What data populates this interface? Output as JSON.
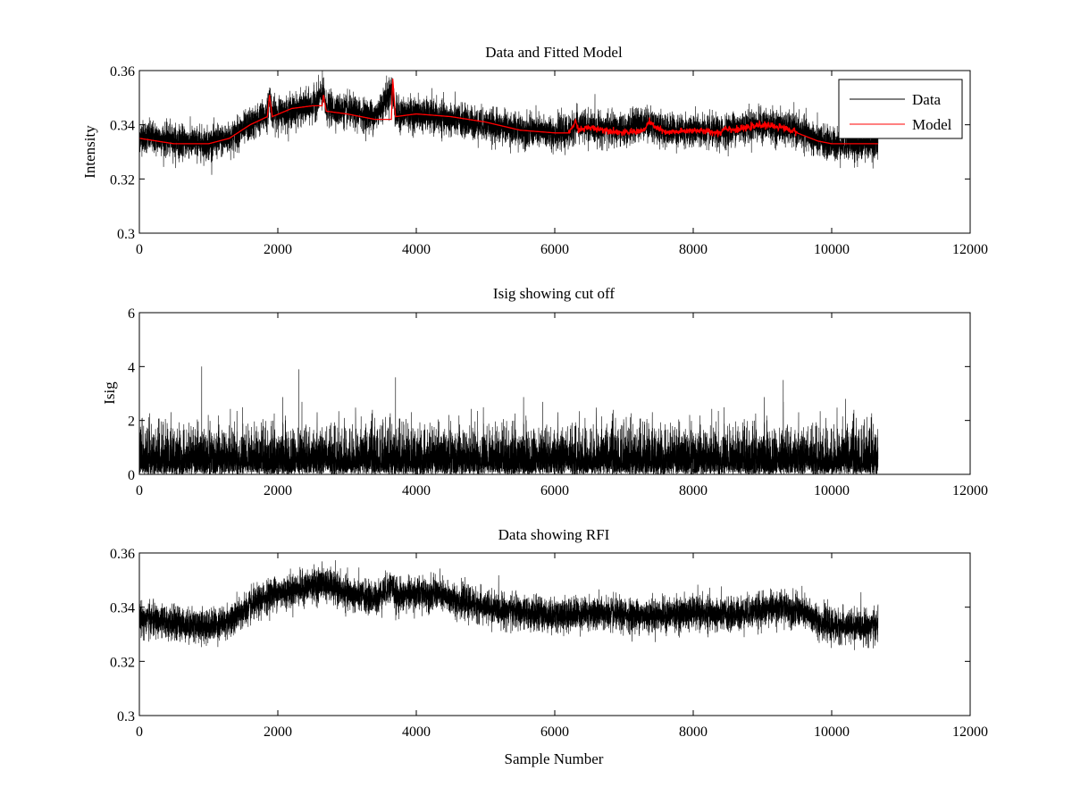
{
  "chart_data": [
    {
      "type": "line",
      "title": "Data and Fitted Model",
      "xlabel": "",
      "ylabel": "Intensity",
      "xlim": [
        0,
        12000
      ],
      "ylim": [
        0.3,
        0.36
      ],
      "xticks": [
        0,
        2000,
        4000,
        6000,
        8000,
        10000,
        12000
      ],
      "yticks": [
        0.3,
        0.32,
        0.34,
        0.36
      ],
      "xtick_labels": [
        "0",
        "2000",
        "4000",
        "6000",
        "8000",
        "10000",
        "12000"
      ],
      "ytick_labels": [
        "0.3",
        "0.32",
        "0.34",
        "0.36"
      ],
      "legend": {
        "placement": "top-right",
        "entries": [
          "Data",
          "Model"
        ]
      },
      "grid": false,
      "n_samples": 10670,
      "series": [
        {
          "name": "Data",
          "color": "#000000",
          "x": [
            0,
            500,
            1000,
            1300,
            1600,
            1850,
            1880,
            1920,
            2200,
            2500,
            2650,
            2700,
            3000,
            3400,
            3650,
            3700,
            4000,
            4500,
            5000,
            5500,
            6000,
            6200,
            6300,
            6500,
            7000,
            7300,
            7600,
            8000,
            8400,
            8600,
            9000,
            9300,
            9600,
            9800,
            10000,
            10300,
            10670
          ],
          "center": [
            0.336,
            0.334,
            0.333,
            0.335,
            0.34,
            0.344,
            0.351,
            0.344,
            0.345,
            0.347,
            0.352,
            0.346,
            0.345,
            0.343,
            0.353,
            0.344,
            0.344,
            0.342,
            0.34,
            0.338,
            0.337,
            0.337,
            0.34,
            0.339,
            0.338,
            0.341,
            0.338,
            0.338,
            0.337,
            0.339,
            0.34,
            0.339,
            0.337,
            0.334,
            0.333,
            0.333,
            0.333
          ],
          "noise_amplitude": 0.0065
        },
        {
          "name": "Model",
          "color": "#ff0000",
          "x": [
            0,
            500,
            1000,
            1300,
            1600,
            1850,
            1880,
            1920,
            2200,
            2500,
            2640,
            2660,
            2700,
            3000,
            3400,
            3640,
            3660,
            3700,
            4000,
            4500,
            5000,
            5500,
            6000,
            6200,
            6300,
            6350,
            6500,
            7000,
            7300,
            7350,
            7600,
            8000,
            8400,
            8450,
            8600,
            9000,
            9300,
            9600,
            9800,
            10000,
            10300,
            10670
          ],
          "y": [
            0.335,
            0.333,
            0.333,
            0.335,
            0.34,
            0.343,
            0.351,
            0.343,
            0.346,
            0.347,
            0.347,
            0.351,
            0.345,
            0.344,
            0.342,
            0.342,
            0.357,
            0.343,
            0.344,
            0.343,
            0.341,
            0.338,
            0.337,
            0.337,
            0.341,
            0.338,
            0.339,
            0.337,
            0.338,
            0.341,
            0.337,
            0.338,
            0.337,
            0.339,
            0.338,
            0.34,
            0.339,
            0.336,
            0.334,
            0.333,
            0.333,
            0.333
          ]
        }
      ]
    },
    {
      "type": "line",
      "title": "Isig showing cut off",
      "xlabel": "",
      "ylabel": "Isig",
      "xlim": [
        0,
        12000
      ],
      "ylim": [
        0,
        6
      ],
      "xticks": [
        0,
        2000,
        4000,
        6000,
        8000,
        10000,
        12000
      ],
      "yticks": [
        0,
        2,
        4,
        6
      ],
      "xtick_labels": [
        "0",
        "2000",
        "4000",
        "6000",
        "8000",
        "10000",
        "12000"
      ],
      "ytick_labels": [
        "0",
        "2",
        "4",
        "6"
      ],
      "grid": false,
      "n_samples": 10670,
      "series": [
        {
          "color": "#000000",
          "typical_range": [
            0,
            2
          ],
          "peaks_x": [
            900,
            2300,
            3700,
            9300,
            10200
          ],
          "peaks_y": [
            4.0,
            3.9,
            3.6,
            3.5,
            2.8
          ]
        }
      ]
    },
    {
      "type": "line",
      "title": "Data showing RFI",
      "xlabel": "Sample Number",
      "ylabel": "",
      "xlim": [
        0,
        12000
      ],
      "ylim": [
        0.3,
        0.36
      ],
      "xticks": [
        0,
        2000,
        4000,
        6000,
        8000,
        10000,
        12000
      ],
      "yticks": [
        0.3,
        0.32,
        0.34,
        0.36
      ],
      "xtick_labels": [
        "0",
        "2000",
        "4000",
        "6000",
        "8000",
        "10000",
        "12000"
      ],
      "ytick_labels": [
        "0.3",
        "0.32",
        "0.34",
        "0.36"
      ],
      "grid": false,
      "n_samples": 10670,
      "series": [
        {
          "color": "#000000",
          "x": [
            0,
            500,
            1000,
            1300,
            1600,
            1850,
            1900,
            2200,
            2500,
            2650,
            3000,
            3400,
            3650,
            3700,
            4000,
            4300,
            4500,
            5000,
            5500,
            6000,
            6500,
            7000,
            7500,
            8000,
            8500,
            9000,
            9300,
            9600,
            9800,
            10000,
            10300,
            10670
          ],
          "center": [
            0.336,
            0.334,
            0.333,
            0.335,
            0.34,
            0.344,
            0.345,
            0.346,
            0.348,
            0.349,
            0.345,
            0.343,
            0.348,
            0.344,
            0.345,
            0.345,
            0.343,
            0.34,
            0.338,
            0.337,
            0.338,
            0.337,
            0.337,
            0.338,
            0.337,
            0.339,
            0.34,
            0.338,
            0.335,
            0.333,
            0.333,
            0.333
          ],
          "noise_amplitude": 0.0065
        }
      ]
    }
  ]
}
